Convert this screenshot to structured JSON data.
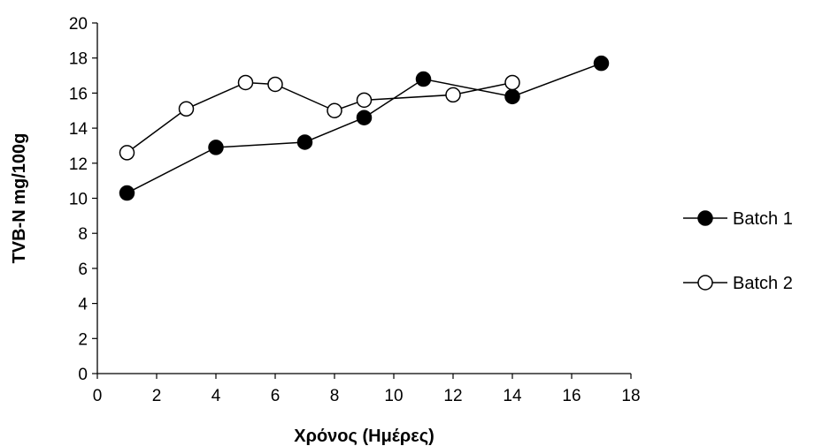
{
  "chart_data": {
    "type": "line",
    "xlabel": "Χρόνος (Ημέρες)",
    "ylabel": "TVB-N mg/100g",
    "xlim": [
      0,
      18
    ],
    "ylim": [
      0,
      20
    ],
    "xticks": [
      0,
      2,
      4,
      6,
      8,
      10,
      12,
      14,
      16,
      18
    ],
    "yticks": [
      0,
      2,
      4,
      6,
      8,
      10,
      12,
      14,
      16,
      18,
      20
    ],
    "grid": false,
    "legend_position": "right",
    "series": [
      {
        "name": "Batch 1",
        "marker": "filled-circle",
        "color": "#000000",
        "points": [
          {
            "x": 1,
            "y": 10.3
          },
          {
            "x": 4,
            "y": 12.9
          },
          {
            "x": 7,
            "y": 13.2
          },
          {
            "x": 9,
            "y": 14.6
          },
          {
            "x": 11,
            "y": 16.8
          },
          {
            "x": 14,
            "y": 15.8
          },
          {
            "x": 17,
            "y": 17.7
          }
        ]
      },
      {
        "name": "Batch 2",
        "marker": "open-circle",
        "color": "#000000",
        "points": [
          {
            "x": 1,
            "y": 12.6
          },
          {
            "x": 3,
            "y": 15.1
          },
          {
            "x": 5,
            "y": 16.6
          },
          {
            "x": 6,
            "y": 16.5
          },
          {
            "x": 8,
            "y": 15.0
          },
          {
            "x": 9,
            "y": 15.6
          },
          {
            "x": 12,
            "y": 15.9
          },
          {
            "x": 14,
            "y": 16.6
          }
        ]
      }
    ]
  }
}
